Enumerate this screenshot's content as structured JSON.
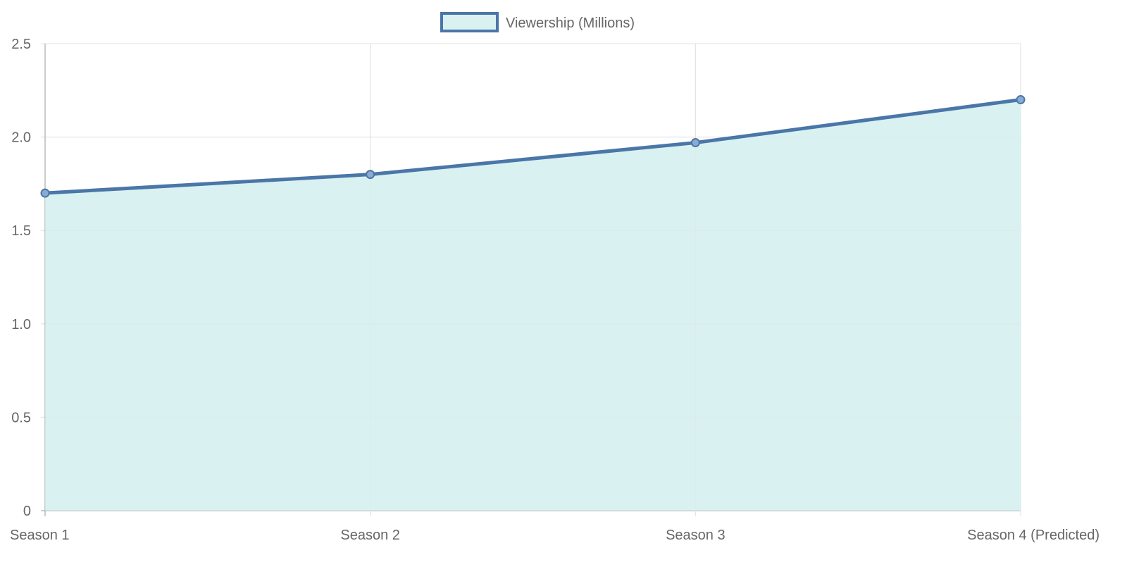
{
  "chart_data": {
    "type": "area",
    "title": "",
    "categories": [
      "Season 1",
      "Season 2",
      "Season 3",
      "Season 4 (Predicted)"
    ],
    "series": [
      {
        "name": "Viewership (Millions)",
        "values": [
          1.7,
          1.8,
          1.97,
          2.2
        ],
        "color": "#4a76a8",
        "fill": "#d9f1f1"
      }
    ],
    "yticks": [
      "0",
      "0.5",
      "1.0",
      "1.5",
      "2.0",
      "2.5"
    ],
    "ylim": [
      0,
      2.5
    ],
    "xlabel": "",
    "ylabel": "",
    "grid": true,
    "legend_position": "top-center"
  }
}
